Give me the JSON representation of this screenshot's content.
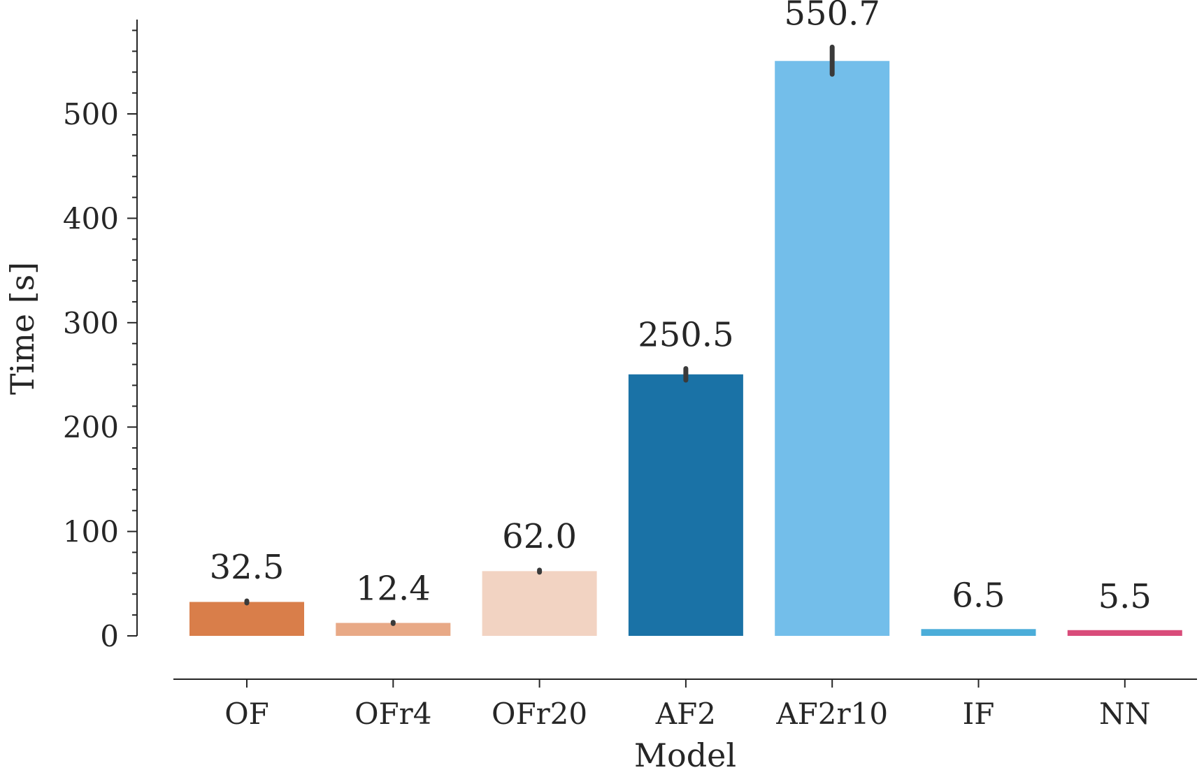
{
  "chart_data": {
    "type": "bar",
    "title": "",
    "xlabel": "Model",
    "ylabel": "Time [s]",
    "categories": [
      "OF",
      "OFr4",
      "OFr20",
      "AF2",
      "AF2r10",
      "IF",
      "NN"
    ],
    "values": [
      32.5,
      12.4,
      62.0,
      250.5,
      550.7,
      6.5,
      5.5
    ],
    "value_labels": [
      "32.5",
      "12.4",
      "62.0",
      "250.5",
      "550.7",
      "6.5",
      "5.5"
    ],
    "error_low": [
      31.5,
      11.8,
      61.0,
      245.0,
      538.0,
      6.5,
      5.5
    ],
    "error_high": [
      33.5,
      13.0,
      63.0,
      256.0,
      564.0,
      6.5,
      5.5
    ],
    "colors": [
      "#D97E4A",
      "#E8A986",
      "#F2D3C2",
      "#1A72A6",
      "#73BEEA",
      "#4BADD9",
      "#D94C7A"
    ],
    "ylim": [
      -40,
      590
    ],
    "yticks": [
      0,
      100,
      200,
      300,
      400,
      500
    ],
    "yticks_minor_step": 20,
    "grid": false,
    "legend": "none"
  }
}
